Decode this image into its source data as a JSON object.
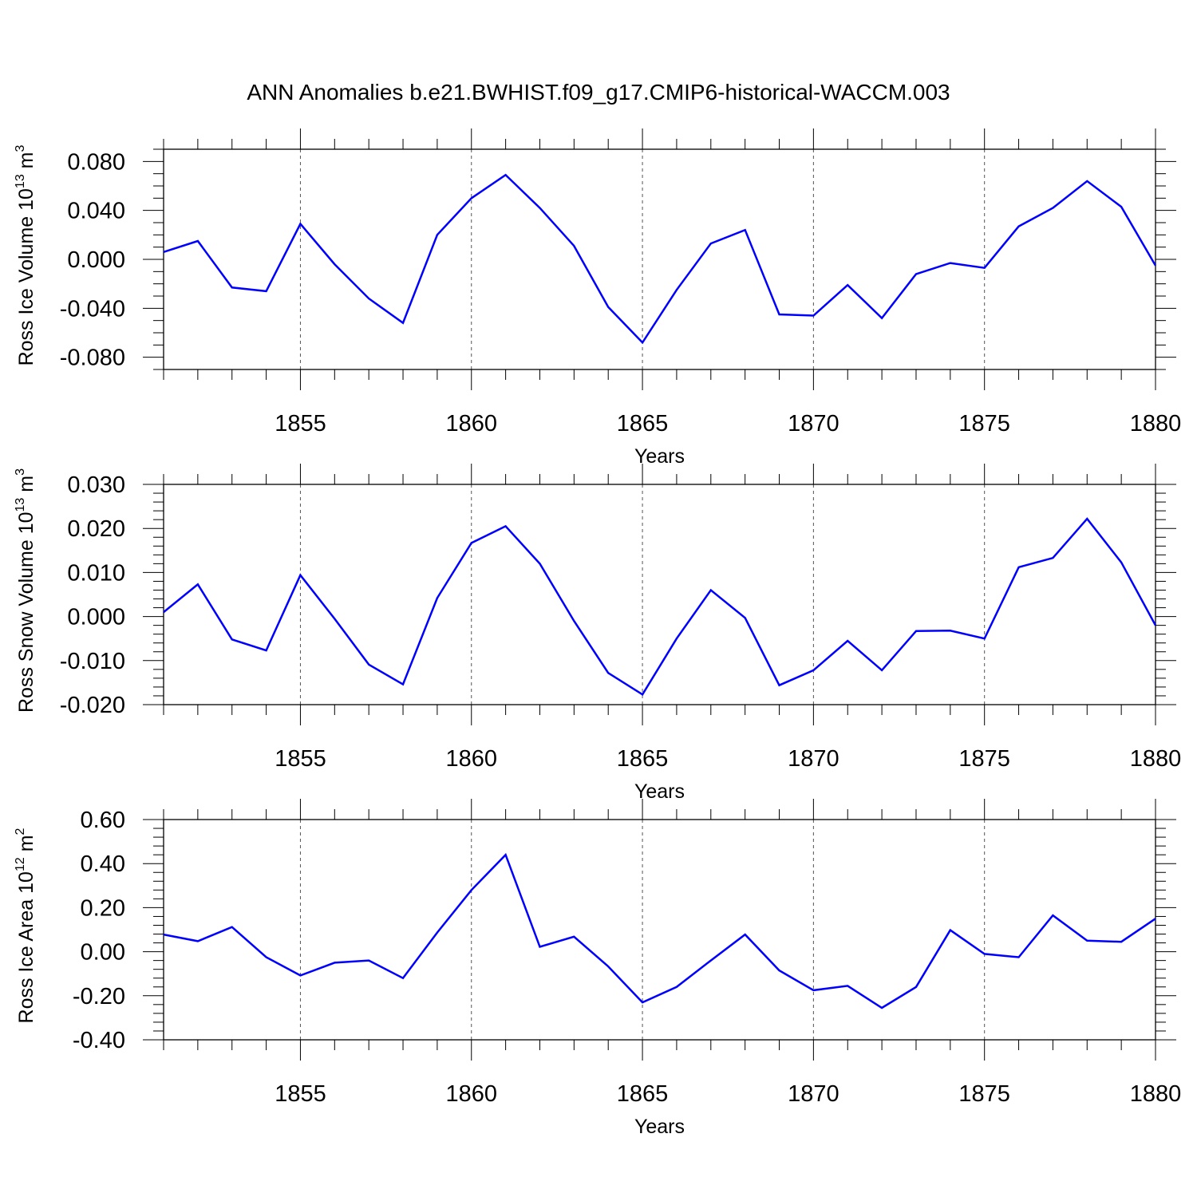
{
  "figure": {
    "title": "ANN Anomalies b.e21.BWHIST.f09_g17.CMIP6-historical-WACCM.003"
  },
  "chart_data": [
    {
      "type": "line",
      "xlabel": "Years",
      "ylabel_parts": [
        "Ross Ice Volume 10",
        "13",
        " m",
        "3"
      ],
      "x": [
        1851,
        1852,
        1853,
        1854,
        1855,
        1856,
        1857,
        1858,
        1859,
        1860,
        1861,
        1862,
        1863,
        1864,
        1865,
        1866,
        1867,
        1868,
        1869,
        1870,
        1871,
        1872,
        1873,
        1874,
        1875,
        1876,
        1877,
        1878,
        1879,
        1880
      ],
      "values": [
        0.006,
        0.015,
        -0.023,
        -0.026,
        0.029,
        -0.004,
        -0.032,
        -0.052,
        0.02,
        0.05,
        0.069,
        0.042,
        0.011,
        -0.039,
        -0.068,
        -0.025,
        0.013,
        0.024,
        -0.045,
        -0.046,
        -0.021,
        -0.048,
        -0.012,
        -0.003,
        -0.007,
        0.027,
        0.042,
        0.064,
        0.043,
        -0.005
      ],
      "xlim": [
        1851,
        1880
      ],
      "ylim": [
        -0.09,
        0.09
      ],
      "yticks": [
        -0.08,
        -0.04,
        0.0,
        0.04,
        0.08
      ],
      "ytick_labels": [
        "-0.080",
        "-0.040",
        "0.000",
        "0.040",
        "0.080"
      ],
      "yminor_step": 0.01,
      "xticks": [
        1855,
        1860,
        1865,
        1870,
        1875,
        1880
      ],
      "xtick_labels": [
        "1855",
        "1860",
        "1865",
        "1870",
        "1875",
        "1880"
      ],
      "grid_x": true,
      "line_color": "#0000ff"
    },
    {
      "type": "line",
      "xlabel": "Years",
      "ylabel_parts": [
        "Ross Snow Volume 10",
        "13",
        " m",
        "3"
      ],
      "x": [
        1851,
        1852,
        1853,
        1854,
        1855,
        1856,
        1857,
        1858,
        1859,
        1860,
        1861,
        1862,
        1863,
        1864,
        1865,
        1866,
        1867,
        1868,
        1869,
        1870,
        1871,
        1872,
        1873,
        1874,
        1875,
        1876,
        1877,
        1878,
        1879,
        1880
      ],
      "values": [
        0.001,
        0.0073,
        -0.0052,
        -0.0077,
        0.0094,
        -0.0005,
        -0.0109,
        -0.0154,
        0.0042,
        0.0167,
        0.0205,
        0.012,
        -0.001,
        -0.0128,
        -0.0177,
        -0.005,
        0.006,
        -0.0003,
        -0.0156,
        -0.0122,
        -0.0055,
        -0.0122,
        -0.0033,
        -0.0032,
        -0.005,
        0.0112,
        0.0133,
        0.0222,
        0.0123,
        -0.002
      ],
      "xlim": [
        1851,
        1880
      ],
      "ylim": [
        -0.02,
        0.03
      ],
      "yticks": [
        -0.02,
        -0.01,
        0.0,
        0.01,
        0.02,
        0.03
      ],
      "ytick_labels": [
        "-0.020",
        "-0.010",
        "0.000",
        "0.010",
        "0.020",
        "0.030"
      ],
      "yminor_step": 0.002,
      "xticks": [
        1855,
        1860,
        1865,
        1870,
        1875,
        1880
      ],
      "xtick_labels": [
        "1855",
        "1860",
        "1865",
        "1870",
        "1875",
        "1880"
      ],
      "grid_x": true,
      "line_color": "#0000ff"
    },
    {
      "type": "line",
      "xlabel": "Years",
      "ylabel_parts": [
        "Ross Ice Area 10",
        "12",
        " m",
        "2"
      ],
      "x": [
        1851,
        1852,
        1853,
        1854,
        1855,
        1856,
        1857,
        1858,
        1859,
        1860,
        1861,
        1862,
        1863,
        1864,
        1865,
        1866,
        1867,
        1868,
        1869,
        1870,
        1871,
        1872,
        1873,
        1874,
        1875,
        1876,
        1877,
        1878,
        1879,
        1880
      ],
      "values": [
        0.078,
        0.048,
        0.112,
        -0.025,
        -0.108,
        -0.05,
        -0.04,
        -0.12,
        0.087,
        0.28,
        0.44,
        0.022,
        0.068,
        -0.067,
        -0.23,
        -0.16,
        -0.04,
        0.078,
        -0.085,
        -0.175,
        -0.155,
        -0.255,
        -0.16,
        0.098,
        -0.01,
        -0.025,
        0.165,
        0.05,
        0.045,
        0.15
      ],
      "xlim": [
        1851,
        1880
      ],
      "ylim": [
        -0.4,
        0.6
      ],
      "yticks": [
        -0.4,
        -0.2,
        0.0,
        0.2,
        0.4,
        0.6
      ],
      "ytick_labels": [
        "-0.40",
        "-0.20",
        "0.00",
        "0.20",
        "0.40",
        "0.60"
      ],
      "yminor_step": 0.04,
      "xticks": [
        1855,
        1860,
        1865,
        1870,
        1875,
        1880
      ],
      "xtick_labels": [
        "1855",
        "1860",
        "1865",
        "1870",
        "1875",
        "1880"
      ],
      "grid_x": true,
      "line_color": "#0000ff"
    }
  ]
}
